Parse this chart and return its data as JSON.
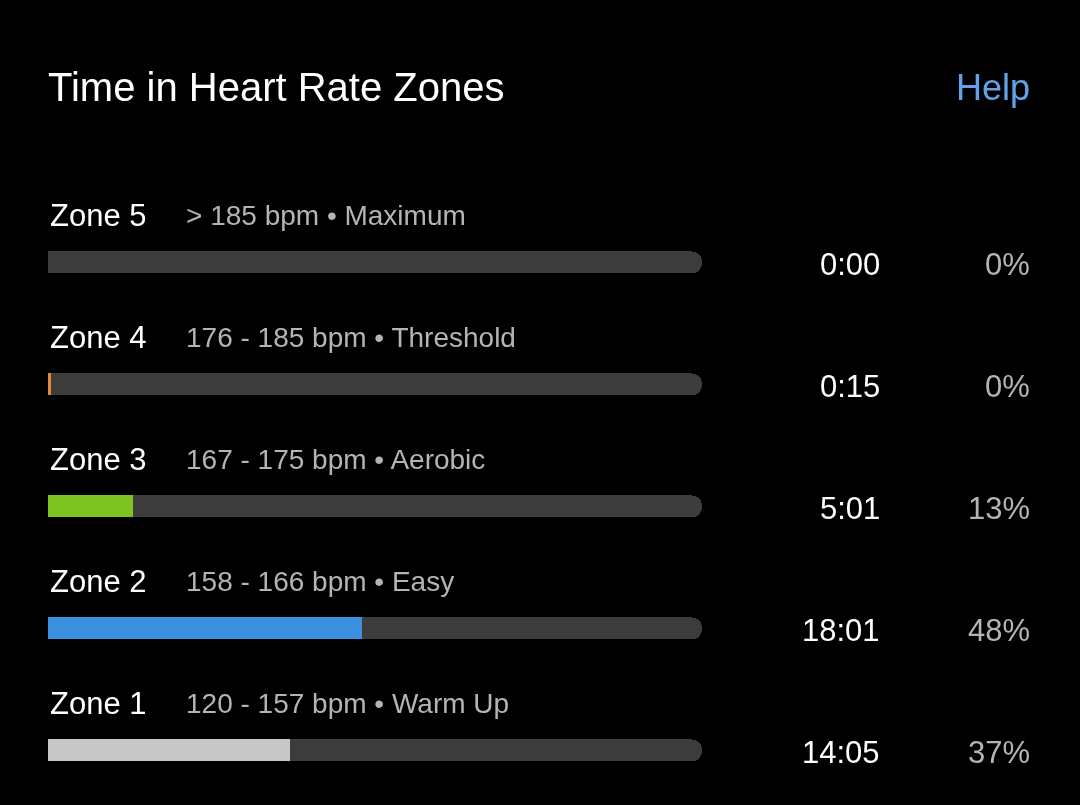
{
  "chart_data": {
    "type": "bar",
    "orientation": "horizontal",
    "stacked": true,
    "title": "Time in Heart Rate Zones",
    "categories": [
      "Zone 5",
      "Zone 4",
      "Zone 3",
      "Zone 2",
      "Zone 1"
    ],
    "series": [
      {
        "colors": [
          "#e0413a",
          "#e8883a",
          "#7ec322",
          "#3d8fe0",
          "#c8c8c8"
        ],
        "values": [
          0,
          0.4,
          13,
          48,
          37
        ],
        "value_labels": [
          "0%",
          "0%",
          "13%",
          "48%",
          "37%"
        ]
      },
      {
        "color": "#3c3c3c",
        "values": [
          100,
          99.6,
          87,
          52,
          63
        ]
      }
    ],
    "xlim": [
      0,
      100
    ],
    "tick_labels": false,
    "legend": false,
    "annotations": [
      "> 185 bpm • Maximum",
      "176 - 185 bpm • Threshold",
      "167 - 175 bpm • Aerobic",
      "158 - 166 bpm • Easy",
      "120 - 157 bpm • Warm Up",
      "0:00",
      "0:15",
      "5:01",
      "18:01",
      "14:05",
      "Help"
    ]
  }
}
